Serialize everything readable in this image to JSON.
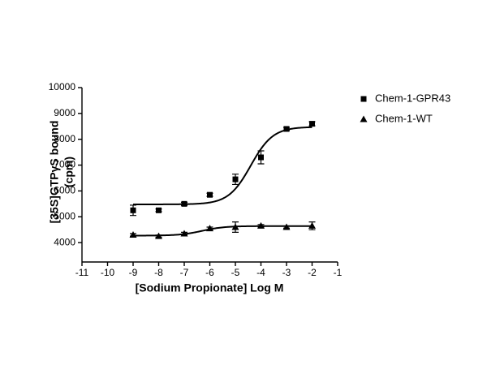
{
  "chart_data": {
    "type": "scatter",
    "xlabel": "[Sodium Propionate] Log M",
    "ylabel": [
      "[35S]GTPγS bound",
      "(cpm)"
    ],
    "xlim": [
      -11,
      -1
    ],
    "xticks": [
      -11,
      -10,
      -9,
      -8,
      -7,
      -6,
      -5,
      -4,
      -3,
      -2,
      -1
    ],
    "ylim": [
      3250,
      10000
    ],
    "yticks": [
      4000,
      5000,
      6000,
      7000,
      8000,
      9000,
      10000
    ],
    "legend": "upper right",
    "series": [
      {
        "name": "Chem-1-GPR43",
        "color": "#000000",
        "marker": "square",
        "x": [
          -9,
          -8,
          -7,
          -6,
          -5,
          -4,
          -3,
          -2
        ],
        "values": [
          5250,
          5250,
          5500,
          5850,
          6450,
          7300,
          8400,
          8600
        ],
        "errors": [
          200,
          50,
          60,
          60,
          200,
          250,
          60,
          80
        ],
        "fit": {
          "bottom": 5480,
          "top": 8480,
          "log_ec50": -4.4,
          "hill_slope": 1
        }
      },
      {
        "name": "Chem-1-WT",
        "color": "#000000",
        "marker": "triangle",
        "x": [
          -9,
          -8,
          -7,
          -6,
          -5,
          -4,
          -3,
          -2
        ],
        "values": [
          4300,
          4250,
          4350,
          4550,
          4600,
          4650,
          4600,
          4650
        ],
        "errors": [
          50,
          40,
          50,
          50,
          200,
          50,
          40,
          150
        ],
        "fit": {
          "bottom": 4270,
          "top": 4640,
          "log_ec50": -6.3,
          "hill_slope": 1
        }
      }
    ]
  }
}
